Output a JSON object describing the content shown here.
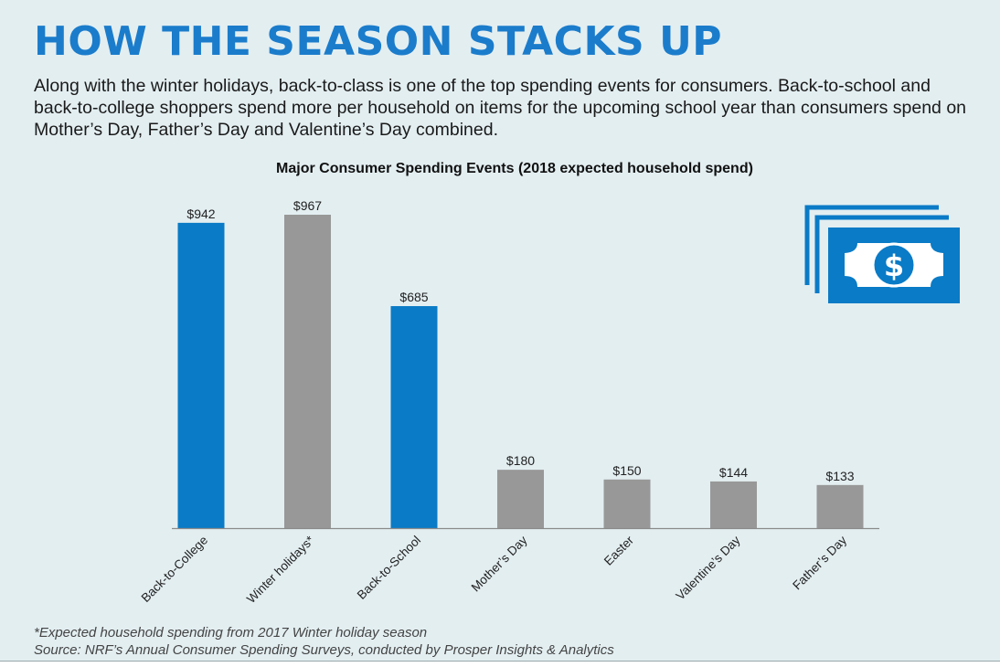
{
  "header": {
    "title": "HOW THE SEASON STACKS UP",
    "intro": "Along with the winter holidays, back-to-class is one of the top spending events for consumers. Back-to-school and back-to-college shoppers spend more per household on items for the upcoming school year than consumers spend on Mother’s Day, Father’s Day and Valentine’s Day combined."
  },
  "footer": {
    "footnote": "*Expected household spending from 2017 Winter holiday season",
    "source": "Source: NRF’s Annual Consumer Spending Surveys, conducted by Prosper Insights & Analytics"
  },
  "colors": {
    "accent": "#1b7ccb",
    "bar_highlight": "#0a7bc6",
    "bar_neutral": "#989898",
    "background": "#e3eef1"
  },
  "icon": {
    "name": "dollar-bill-icon",
    "symbol": "$"
  },
  "chart_data": {
    "type": "bar",
    "title": "Major Consumer Spending Events (2018 expected household spend)",
    "xlabel": "",
    "ylabel": "",
    "ylim": [
      0,
      967
    ],
    "grid": false,
    "legend": "none",
    "categories": [
      "Back-to-College",
      "Winter holidays*",
      "Back-to-School",
      "Mother’s Day",
      "Easter",
      "Valentine’s Day",
      "Father’s Day"
    ],
    "values": [
      942,
      967,
      685,
      180,
      150,
      144,
      133
    ],
    "value_labels": [
      "$942",
      "$967",
      "$685",
      "$180",
      "$150",
      "$144",
      "$133"
    ],
    "highlighted": [
      true,
      false,
      true,
      false,
      false,
      false,
      false
    ]
  }
}
